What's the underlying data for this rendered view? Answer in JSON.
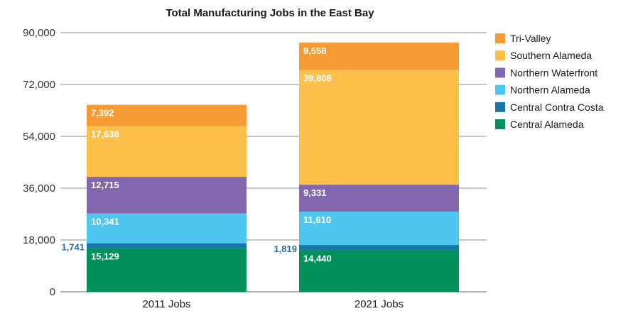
{
  "chart_data": {
    "type": "bar",
    "stacked": true,
    "title": "Total Manufacturing Jobs in the East Bay",
    "xlabel": "",
    "ylabel": "",
    "categories": [
      "2011 Jobs",
      "2021 Jobs"
    ],
    "ylim": [
      0,
      90000
    ],
    "yticks": [
      "0",
      "18,000",
      "36,000",
      "54,000",
      "72,000",
      "90,000"
    ],
    "ytick_values": [
      0,
      18000,
      36000,
      54000,
      72000,
      90000
    ],
    "grid": true,
    "legend_position": "right",
    "series": [
      {
        "name": "Central Alameda",
        "color": "#00915a",
        "values": [
          15129,
          14440
        ],
        "labels": [
          "15,129",
          "14,440"
        ],
        "label_outside": false
      },
      {
        "name": "Central Contra Costa",
        "color": "#1a75a8",
        "values": [
          1741,
          1819
        ],
        "labels": [
          "1,741",
          "1,819"
        ],
        "label_outside": true
      },
      {
        "name": "Northern Alameda",
        "color": "#4fc6ef",
        "values": [
          10341,
          11610
        ],
        "labels": [
          "10,341",
          "11,610"
        ],
        "label_outside": false
      },
      {
        "name": "Northern Waterfront",
        "color": "#8266ae",
        "values": [
          12715,
          9331
        ],
        "labels": [
          "12,715",
          "9,331"
        ],
        "label_outside": false
      },
      {
        "name": "Southern Alameda",
        "color": "#fdc04a",
        "values": [
          17638,
          39808
        ],
        "labels": [
          "17,638",
          "39,808"
        ],
        "label_outside": false
      },
      {
        "name": "Tri-Valley",
        "color": "#f79b34",
        "values": [
          7392,
          9558
        ],
        "labels": [
          "7,392",
          "9,558"
        ],
        "label_outside": false
      }
    ],
    "legend_order": [
      "Tri-Valley",
      "Southern Alameda",
      "Northern Waterfront",
      "Northern Alameda",
      "Central Contra Costa",
      "Central Alameda"
    ]
  }
}
